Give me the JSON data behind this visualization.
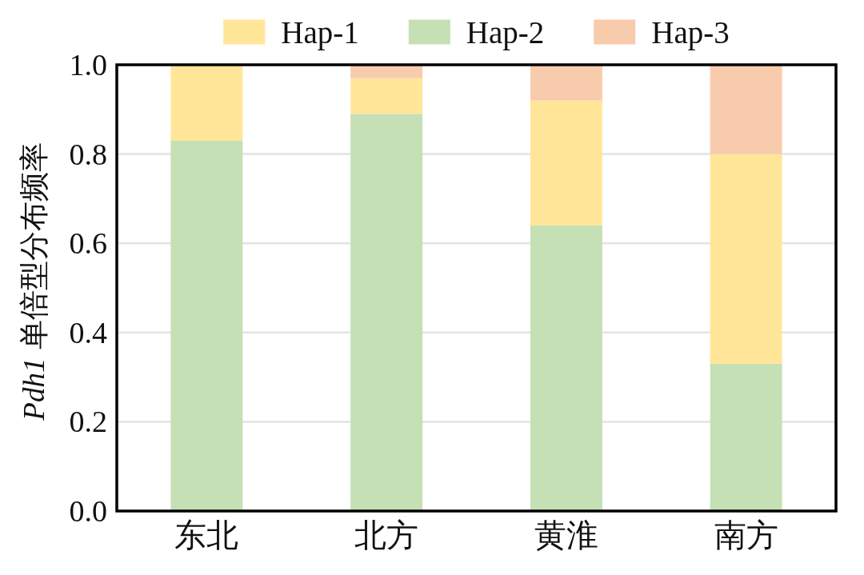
{
  "chart_data": {
    "type": "bar",
    "stacked": true,
    "categories": [
      "东北",
      "北方",
      "黄淮",
      "南方"
    ],
    "ylabel": "Pdh1 单倍型分布频率",
    "ylim": [
      0,
      1
    ],
    "yticks": [
      {
        "value": 0,
        "label": "0.0"
      },
      0.2,
      0.4,
      0.6,
      0.8,
      {
        "value": 1,
        "label": "1.0"
      }
    ],
    "grid": "y",
    "legend": "top",
    "series": [
      {
        "name": "Hap-2",
        "color": "#c5e0b4",
        "values": [
          0.83,
          0.89,
          0.64,
          0.33
        ]
      },
      {
        "name": "Hap-1",
        "color": "#ffe699",
        "values": [
          0.17,
          0.08,
          0.28,
          0.47
        ]
      },
      {
        "name": "Hap-3",
        "color": "#f8cbad",
        "values": [
          null,
          0.03,
          0.08,
          0.2
        ]
      }
    ]
  }
}
